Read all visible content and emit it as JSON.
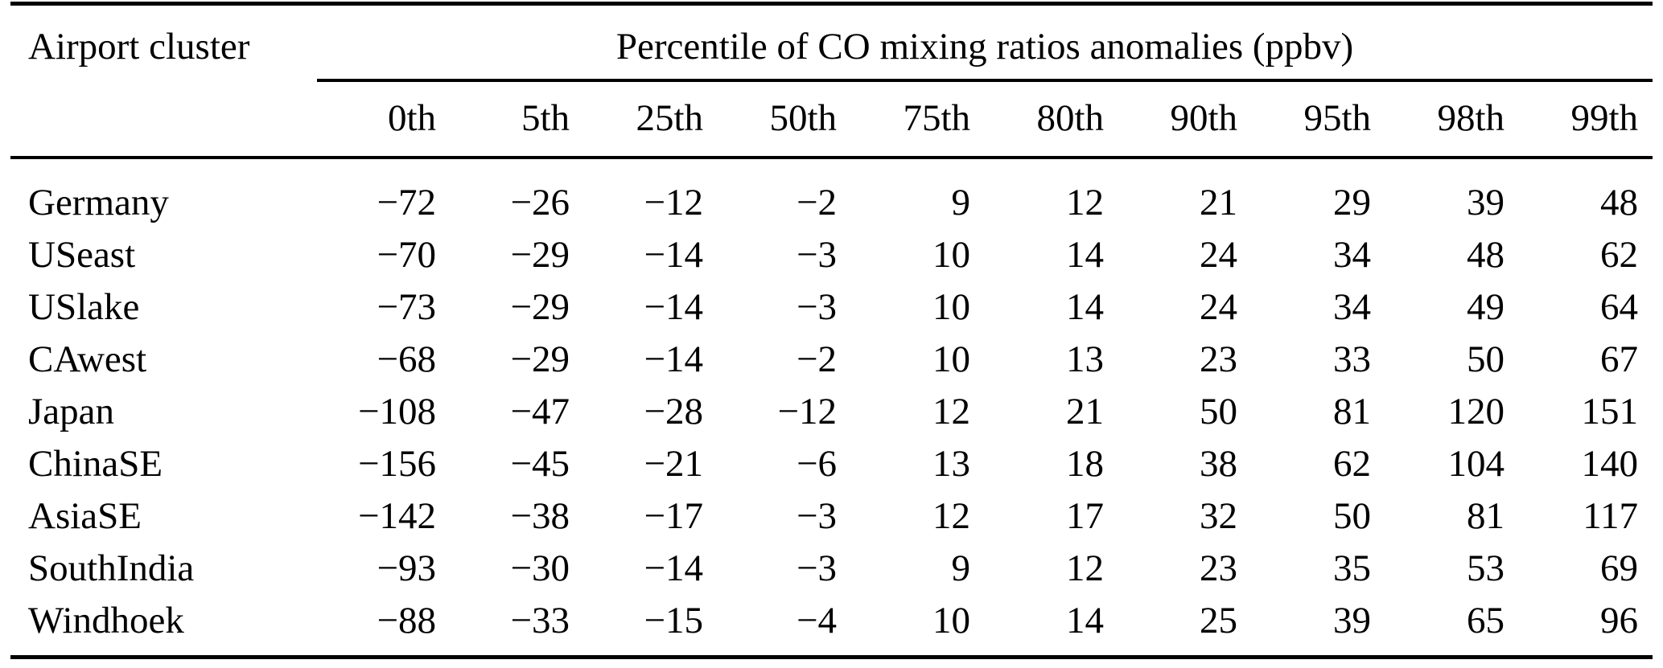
{
  "table": {
    "col1_header": "Airport cluster",
    "span_header": "Percentile of CO mixing ratios anomalies (ppbv)",
    "percentiles": [
      "0th",
      "5th",
      "25th",
      "50th",
      "75th",
      "80th",
      "90th",
      "95th",
      "98th",
      "99th"
    ],
    "rows": [
      {
        "cluster": "Germany",
        "values": [
          "−72",
          "−26",
          "−12",
          "−2",
          "9",
          "12",
          "21",
          "29",
          "39",
          "48"
        ]
      },
      {
        "cluster": "USeast",
        "values": [
          "−70",
          "−29",
          "−14",
          "−3",
          "10",
          "14",
          "24",
          "34",
          "48",
          "62"
        ]
      },
      {
        "cluster": "USlake",
        "values": [
          "−73",
          "−29",
          "−14",
          "−3",
          "10",
          "14",
          "24",
          "34",
          "49",
          "64"
        ]
      },
      {
        "cluster": "CAwest",
        "values": [
          "−68",
          "−29",
          "−14",
          "−2",
          "10",
          "13",
          "23",
          "33",
          "50",
          "67"
        ]
      },
      {
        "cluster": "Japan",
        "values": [
          "−108",
          "−47",
          "−28",
          "−12",
          "12",
          "21",
          "50",
          "81",
          "120",
          "151"
        ]
      },
      {
        "cluster": "ChinaSE",
        "values": [
          "−156",
          "−45",
          "−21",
          "−6",
          "13",
          "18",
          "38",
          "62",
          "104",
          "140"
        ]
      },
      {
        "cluster": "AsiaSE",
        "values": [
          "−142",
          "−38",
          "−17",
          "−3",
          "12",
          "17",
          "32",
          "50",
          "81",
          "117"
        ]
      },
      {
        "cluster": "SouthIndia",
        "values": [
          "−93",
          "−30",
          "−14",
          "−3",
          "9",
          "12",
          "23",
          "35",
          "53",
          "69"
        ]
      },
      {
        "cluster": "Windhoek",
        "values": [
          "−88",
          "−33",
          "−15",
          "−4",
          "10",
          "14",
          "25",
          "39",
          "65",
          "96"
        ]
      }
    ]
  },
  "chart_data": {
    "type": "table",
    "title": "Percentile of CO mixing ratios anomalies (ppbv)",
    "row_header": "Airport cluster",
    "columns": [
      "0th",
      "5th",
      "25th",
      "50th",
      "75th",
      "80th",
      "90th",
      "95th",
      "98th",
      "99th"
    ],
    "series": [
      {
        "name": "Germany",
        "values": [
          -72,
          -26,
          -12,
          -2,
          9,
          12,
          21,
          29,
          39,
          48
        ]
      },
      {
        "name": "USeast",
        "values": [
          -70,
          -29,
          -14,
          -3,
          10,
          14,
          24,
          34,
          48,
          62
        ]
      },
      {
        "name": "USlake",
        "values": [
          -73,
          -29,
          -14,
          -3,
          10,
          14,
          24,
          34,
          49,
          64
        ]
      },
      {
        "name": "CAwest",
        "values": [
          -68,
          -29,
          -14,
          -2,
          10,
          13,
          23,
          33,
          50,
          67
        ]
      },
      {
        "name": "Japan",
        "values": [
          -108,
          -47,
          -28,
          -12,
          12,
          21,
          50,
          81,
          120,
          151
        ]
      },
      {
        "name": "ChinaSE",
        "values": [
          -156,
          -45,
          -21,
          -6,
          13,
          18,
          38,
          62,
          104,
          140
        ]
      },
      {
        "name": "AsiaSE",
        "values": [
          -142,
          -38,
          -17,
          -3,
          12,
          17,
          32,
          50,
          81,
          117
        ]
      },
      {
        "name": "SouthIndia",
        "values": [
          -93,
          -30,
          -14,
          -3,
          9,
          12,
          23,
          35,
          53,
          69
        ]
      },
      {
        "name": "Windhoek",
        "values": [
          -88,
          -33,
          -15,
          -4,
          10,
          14,
          25,
          39,
          65,
          96
        ]
      }
    ]
  },
  "colors": {
    "text": "#000000",
    "background": "#ffffff",
    "rule": "#000000"
  }
}
